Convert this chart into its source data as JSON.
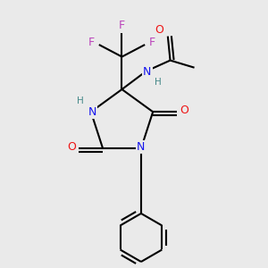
{
  "bg_color": "#eaeaea",
  "bond_color": "#000000",
  "bond_lw": 1.5,
  "atom_colors": {
    "N": "#1414ee",
    "O": "#ee1414",
    "F": "#bb44bb",
    "H": "#448888"
  },
  "label_fs": 9.0,
  "label_fs_small": 7.5,
  "figsize": [
    3.0,
    3.0
  ],
  "dpi": 100,
  "xlim": [
    -4.5,
    5.5
  ],
  "ylim": [
    -5.5,
    5.5
  ]
}
